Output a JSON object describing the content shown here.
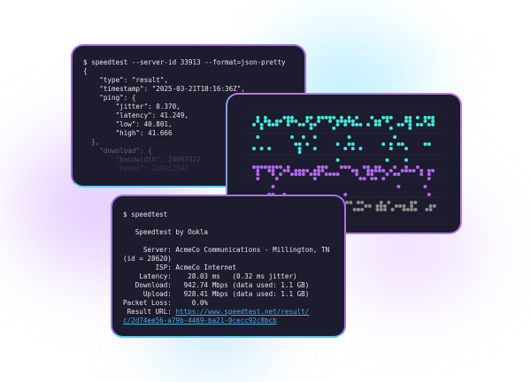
{
  "json_terminal": {
    "command": "$ speedtest --server-id 33913 --format=json-pretty",
    "lines": [
      "{",
      "    \"type\": \"result\",",
      "    \"timestamp\": \"2025-03-21T18:16:36Z\",",
      "    \"ping\": {",
      "        \"jitter\": 0.370,",
      "        \"latency\": 41.249,",
      "        \"low\": 40.801,",
      "        \"high\": 41.666",
      "  },",
      "    \"download\": {",
      "        \"bandwidth\": 24097927",
      "        \"bytes\": 239152592"
    ]
  },
  "scatter_panel": {
    "colors": {
      "download": "#40e8d8",
      "upload": "#b366f0",
      "latency": "#8a8a8a",
      "grid": "#2a2d48"
    }
  },
  "cli_terminal": {
    "command": "$ speedtest",
    "title": "   Speedtest by Ookla",
    "lines": [
      "     Server: AcmeCo Communications - Millington, TN",
      "(id = 28620)",
      "        ISP: AcmeCo Internet",
      "    Latency:    28.03 ms   (0.32 ms jitter)",
      "   Download:   942.74 Mbps (data used: 1.1 GB)",
      "     Upload:   928.41 Mbps (data used: 1.1 GB)",
      "Packet Loss:     0.0%"
    ],
    "result_label": " Result URL: ",
    "result_url_1": "https://www.speedtest.net/result/",
    "result_url_2": "c/2d74ee56-a79b-4469-ba21-0cecc92c8bcb"
  }
}
